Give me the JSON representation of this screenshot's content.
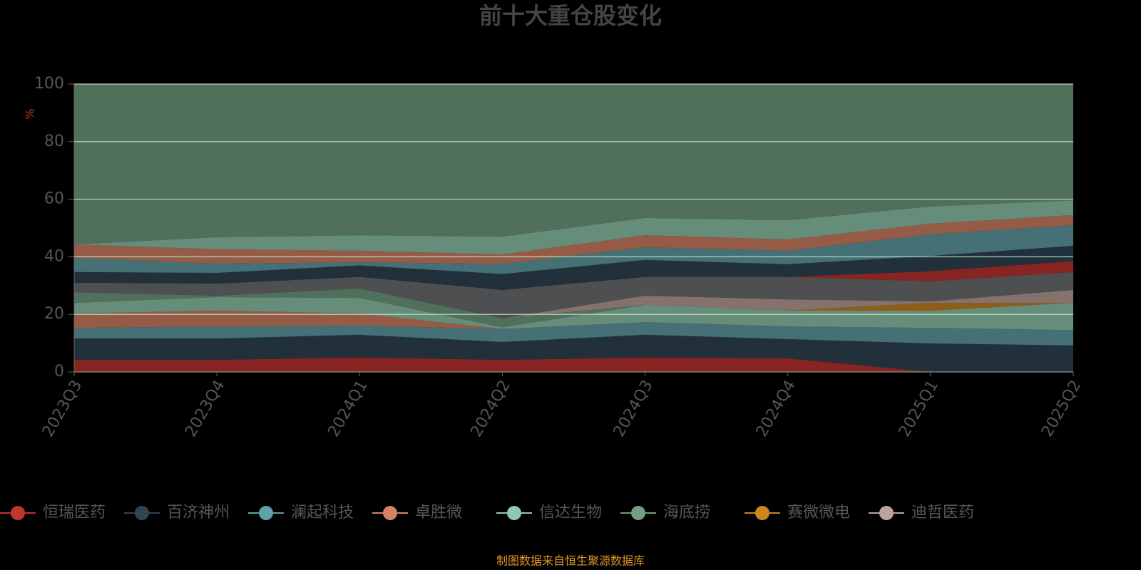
{
  "chart_data": {
    "type": "stacked-area",
    "title": "前十大重仓股变化",
    "y_label": "%",
    "footer": "制图数据来自恒生聚源数据库",
    "categories": [
      "2023Q3",
      "2023Q4",
      "2024Q1",
      "2024Q2",
      "2024Q3",
      "2024Q4",
      "2025Q1",
      "2025Q2"
    ],
    "ylim": [
      0,
      100
    ],
    "yticks": [
      0,
      20,
      40,
      60,
      80,
      100
    ],
    "grid": true,
    "series": [
      {
        "name": "恒瑞医药",
        "color": "#c23531",
        "values": [
          4.2,
          4.2,
          5,
          4.2,
          5,
          4.7,
          0,
          0
        ]
      },
      {
        "name": "百济神州",
        "color": "#2f4554",
        "values": [
          7.4,
          7.4,
          7.9,
          6.2,
          7.9,
          6.7,
          9.9,
          9.2
        ]
      },
      {
        "name": "澜起科技",
        "color": "#61a0a8",
        "values": [
          3.7,
          4.2,
          3.2,
          4.5,
          4.4,
          4.4,
          5.4,
          5.3
        ]
      },
      {
        "name": "卓胜微",
        "color": "#d48265",
        "values": [
          5,
          5.5,
          4.2,
          0,
          0,
          0,
          0,
          0
        ]
      },
      {
        "name": "信达生物",
        "color": "#91c7ae",
        "values": [
          3.7,
          4.7,
          5.4,
          0.6,
          6,
          5.5,
          6,
          9.5
        ]
      },
      {
        "name": "海底捞",
        "color": "#749f83",
        "values": [
          3.7,
          0.5,
          3.3,
          3.1,
          0,
          0,
          0,
          0
        ]
      },
      {
        "name": "赛微微电",
        "color": "#ca8622",
        "values": [
          0,
          0,
          0,
          0,
          0,
          0,
          2.7,
          0
        ]
      },
      {
        "name": "迪哲医药",
        "color": "#bda29a",
        "values": [
          0,
          0,
          0,
          0,
          3.2,
          3.9,
          0.5,
          4.5
        ]
      },
      {
        "color": "#6e7074",
        "values": [
          3.3,
          4.2,
          4,
          9.9,
          6.5,
          7.8,
          7,
          6.2
        ]
      },
      {
        "color": "#c23531",
        "values": [
          0,
          0,
          0,
          0,
          0,
          0,
          3.5,
          3.8
        ]
      },
      {
        "color": "#2f4554",
        "values": [
          3.7,
          3.7,
          4,
          5.5,
          5.9,
          4.4,
          5.3,
          5.3
        ]
      },
      {
        "color": "#61a0a8",
        "values": [
          4.9,
          3.2,
          1.1,
          3.5,
          4.4,
          4.7,
          7.5,
          7.2
        ]
      },
      {
        "color": "#d48265",
        "values": [
          4.7,
          5,
          4,
          3.3,
          4.2,
          3.9,
          3.7,
          3.5
        ]
      },
      {
        "color": "#91c7ae",
        "values": [
          0,
          4.2,
          5.4,
          6.2,
          6,
          6.7,
          6,
          5.1
        ]
      },
      {
        "color": "#749f83",
        "values": [
          55.7,
          53.2,
          52.5,
          53,
          46.5,
          47.3,
          42.5,
          40.4
        ]
      }
    ]
  }
}
